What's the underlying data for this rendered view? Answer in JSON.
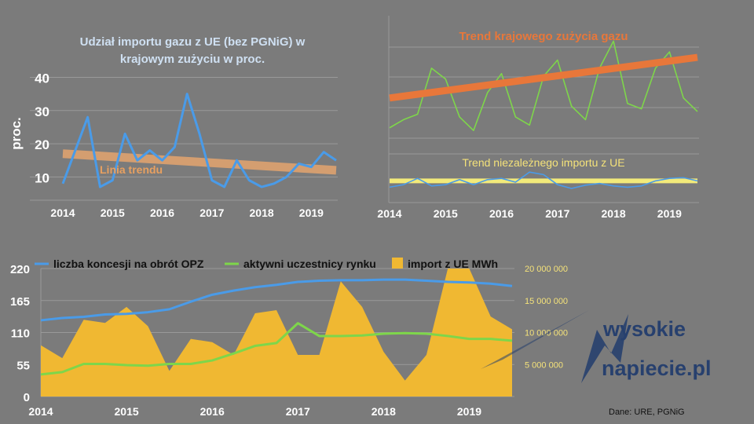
{
  "colors": {
    "background": "#7b7b7b",
    "grid": "#9a9a9a",
    "blue": "#4a9be8",
    "green": "#7ed64a",
    "trend_orange": "#e8773a",
    "trend_tan": "#d9a070",
    "yellow_line": "#f2ea7a",
    "area_fill": "#f0b832",
    "title_blue": "#cfe0f2",
    "title_yellow": "#f4e27a",
    "logo_blue": "#27406e"
  },
  "chart_data": [
    {
      "type": "line",
      "title": "Udział importu gazu z UE (bez PGNiG) w krajowym zużyciu w proc.",
      "title_lines": [
        "Udział importu gazu z UE (bez PGNiG) w",
        "krajowym zużyciu w proc."
      ],
      "ylabel": "proc.",
      "xlim": [
        2014,
        2019.5
      ],
      "ylim": [
        3,
        42
      ],
      "yticks": [
        10,
        20,
        30,
        40
      ],
      "xticks": [
        2014,
        2015,
        2016,
        2017,
        2018,
        2019
      ],
      "grid": true,
      "series": [
        {
          "values": [
            [
              2014,
              8
            ],
            [
              2014.25,
              18
            ],
            [
              2014.5,
              28
            ],
            [
              2014.75,
              7
            ],
            [
              2015,
              9
            ],
            [
              2015.25,
              23
            ],
            [
              2015.5,
              15
            ],
            [
              2015.75,
              18
            ],
            [
              2016,
              15
            ],
            [
              2016.25,
              19
            ],
            [
              2016.5,
              35
            ],
            [
              2016.75,
              23
            ],
            [
              2017,
              9
            ],
            [
              2017.25,
              7
            ],
            [
              2017.5,
              15
            ],
            [
              2017.75,
              9
            ],
            [
              2018,
              7
            ],
            [
              2018.25,
              8
            ],
            [
              2018.5,
              10
            ],
            [
              2018.75,
              14
            ],
            [
              2019,
              13
            ],
            [
              2019.25,
              17.5
            ],
            [
              2019.5,
              15
            ]
          ]
        }
      ],
      "trend": {
        "label": "Linia trendu",
        "from": [
          2014,
          17
        ],
        "to": [
          2019.5,
          12
        ]
      }
    },
    {
      "type": "line",
      "title_top": "Trend krajowego zużycia gazu",
      "title_bottom": "Trend niezależnego importu z UE",
      "xlim": [
        2014,
        2019.5
      ],
      "xticks": [
        2014,
        2015,
        2016,
        2017,
        2018,
        2019
      ],
      "grid": true,
      "consumption": [
        [
          2014,
          30
        ],
        [
          2014.25,
          33
        ],
        [
          2014.5,
          35
        ],
        [
          2014.75,
          52
        ],
        [
          2015,
          48
        ],
        [
          2015.25,
          34
        ],
        [
          2015.5,
          29
        ],
        [
          2015.75,
          43
        ],
        [
          2016,
          50
        ],
        [
          2016.25,
          34
        ],
        [
          2016.5,
          31
        ],
        [
          2016.75,
          49
        ],
        [
          2017,
          55
        ],
        [
          2017.25,
          38
        ],
        [
          2017.5,
          33
        ],
        [
          2017.75,
          52
        ],
        [
          2018,
          62
        ],
        [
          2018.25,
          39
        ],
        [
          2018.5,
          37
        ],
        [
          2018.75,
          52
        ],
        [
          2019,
          58
        ],
        [
          2019.25,
          41
        ],
        [
          2019.5,
          36
        ]
      ],
      "import": [
        [
          2014,
          3
        ],
        [
          2014.25,
          4
        ],
        [
          2014.5,
          6.5
        ],
        [
          2014.75,
          3.5
        ],
        [
          2015,
          4
        ],
        [
          2015.25,
          6
        ],
        [
          2015.5,
          4
        ],
        [
          2015.75,
          6
        ],
        [
          2016,
          6.5
        ],
        [
          2016.25,
          5
        ],
        [
          2016.5,
          9
        ],
        [
          2016.75,
          8
        ],
        [
          2017,
          4
        ],
        [
          2017.25,
          2.5
        ],
        [
          2017.5,
          3.8
        ],
        [
          2017.75,
          4.5
        ],
        [
          2018,
          3.5
        ],
        [
          2018.25,
          3
        ],
        [
          2018.5,
          3.5
        ],
        [
          2018.75,
          5.5
        ],
        [
          2019,
          6.5
        ],
        [
          2019.25,
          6.8
        ],
        [
          2019.5,
          5.5
        ]
      ],
      "consumption_trend": {
        "from": [
          2014,
          41
        ],
        "to": [
          2019.5,
          56
        ]
      },
      "import_trend": {
        "from": [
          2014,
          5.5
        ],
        "to": [
          2019.5,
          5.5
        ]
      }
    },
    {
      "type": "line",
      "legend": [
        "liczba koncesji na obrót OPZ",
        "aktywni uczestnicy rynku",
        "import z UE MWh"
      ],
      "legend_placement": "top",
      "xlim": [
        2014,
        2019.5
      ],
      "xticks": [
        2014,
        2015,
        2016,
        2017,
        2018,
        2019
      ],
      "ylim_left": [
        0,
        220
      ],
      "yticks_left": [
        0,
        55,
        110,
        165,
        220
      ],
      "ylim_right": [
        0,
        20000000
      ],
      "yticks_right_labels": [
        "5 000 000",
        "10 000 000",
        "15 000 000",
        "20 000 000"
      ],
      "yticks_right_values": [
        5000000,
        10000000,
        15000000,
        20000000
      ],
      "concessions": [
        [
          2014,
          131
        ],
        [
          2014.25,
          135
        ],
        [
          2014.5,
          137
        ],
        [
          2014.75,
          141
        ],
        [
          2015,
          142
        ],
        [
          2015.25,
          145
        ],
        [
          2015.5,
          150
        ],
        [
          2015.75,
          163
        ],
        [
          2016,
          175
        ],
        [
          2016.25,
          182
        ],
        [
          2016.5,
          188
        ],
        [
          2016.75,
          192
        ],
        [
          2017,
          197
        ],
        [
          2017.25,
          199
        ],
        [
          2017.5,
          200
        ],
        [
          2017.75,
          200
        ],
        [
          2018,
          201
        ],
        [
          2018.25,
          201
        ],
        [
          2018.5,
          199
        ],
        [
          2018.75,
          197
        ],
        [
          2019,
          196
        ],
        [
          2019.25,
          194
        ],
        [
          2019.5,
          190
        ]
      ],
      "participants": [
        [
          2014,
          38
        ],
        [
          2014.25,
          42
        ],
        [
          2014.5,
          56
        ],
        [
          2014.75,
          56
        ],
        [
          2015,
          54
        ],
        [
          2015.25,
          53
        ],
        [
          2015.5,
          56
        ],
        [
          2015.75,
          56
        ],
        [
          2016,
          62
        ],
        [
          2016.25,
          74
        ],
        [
          2016.5,
          87
        ],
        [
          2016.75,
          92
        ],
        [
          2017,
          126
        ],
        [
          2017.25,
          104
        ],
        [
          2017.5,
          104
        ],
        [
          2017.75,
          105
        ],
        [
          2018,
          108
        ],
        [
          2018.25,
          109
        ],
        [
          2018.5,
          108
        ],
        [
          2018.75,
          104
        ],
        [
          2019,
          99
        ],
        [
          2019.25,
          99
        ],
        [
          2019.5,
          96
        ]
      ],
      "import_mwh": [
        [
          2014,
          8000000
        ],
        [
          2014.25,
          6000000
        ],
        [
          2014.5,
          12000000
        ],
        [
          2014.75,
          11500000
        ],
        [
          2015,
          14000000
        ],
        [
          2015.25,
          11000000
        ],
        [
          2015.5,
          4000000
        ],
        [
          2015.75,
          9000000
        ],
        [
          2016,
          8500000
        ],
        [
          2016.25,
          6500000
        ],
        [
          2016.5,
          13000000
        ],
        [
          2016.75,
          13500000
        ],
        [
          2017,
          6500000
        ],
        [
          2017.25,
          6500000
        ],
        [
          2017.5,
          18000000
        ],
        [
          2017.75,
          14000000
        ],
        [
          2018,
          7000000
        ],
        [
          2018.25,
          2500000
        ],
        [
          2018.5,
          6500000
        ],
        [
          2018.75,
          20000000
        ],
        [
          2019,
          21000000
        ],
        [
          2019.25,
          12500000
        ],
        [
          2019.5,
          10500000
        ]
      ]
    }
  ],
  "logo": {
    "line1": "wysokie",
    "line2": "napiecie.pl",
    "icon": "lightning-bolt-icon"
  },
  "source": "Dane: URE, PGNiG"
}
